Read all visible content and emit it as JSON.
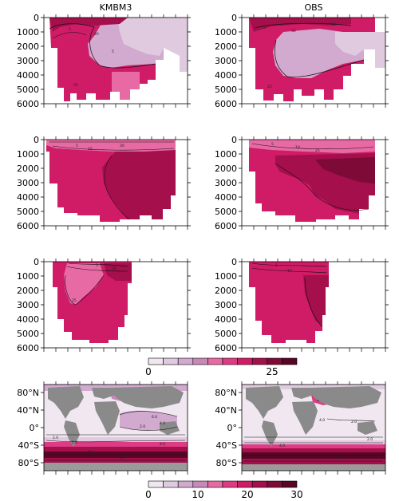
{
  "chart_data": {
    "type": "heatmap",
    "column_titles": [
      "KMBM3",
      "OBS"
    ],
    "depth_axis": {
      "ticks": [
        "0",
        "1000",
        "2000",
        "3000",
        "4000",
        "5000",
        "6000"
      ],
      "range": [
        0,
        6000
      ]
    },
    "colorbar_sections": {
      "ticks": [
        "0",
        "25"
      ],
      "range": [
        0,
        30
      ],
      "levels": 10
    },
    "colorbar_maps": {
      "ticks": [
        "0",
        "10",
        "20",
        "30"
      ],
      "range": [
        0,
        30
      ],
      "levels": 10
    },
    "map_lat_ticks": [
      "80°N",
      "40°N",
      "0°",
      "40°S",
      "80°S"
    ],
    "contour_labels": {
      "sec1_left": [
        "5",
        "20",
        "5",
        "25"
      ],
      "sec1_right": [
        "5",
        "10",
        "30",
        "25"
      ],
      "sec2_left": [
        "5",
        "10",
        "20"
      ],
      "sec2_right": [
        "5",
        "10",
        "25"
      ],
      "sec3_left": [
        "25",
        "5",
        "10"
      ],
      "sec3_right": [
        "5",
        "10"
      ],
      "map_left": [
        "2.0",
        "6.0",
        "4.0",
        "2.0",
        "8.0",
        "6.0",
        "4.0",
        "2.0"
      ],
      "map_right": [
        "4.0",
        "2.0",
        "4.0",
        "6.0",
        "2.0"
      ]
    },
    "palette": [
      "#f1e7f0",
      "#e0cae0",
      "#d2a9cf",
      "#c889b9",
      "#e86aa4",
      "#dd3b83",
      "#d01c67",
      "#a40f4c",
      "#7e0b37",
      "#5a0526"
    ]
  }
}
